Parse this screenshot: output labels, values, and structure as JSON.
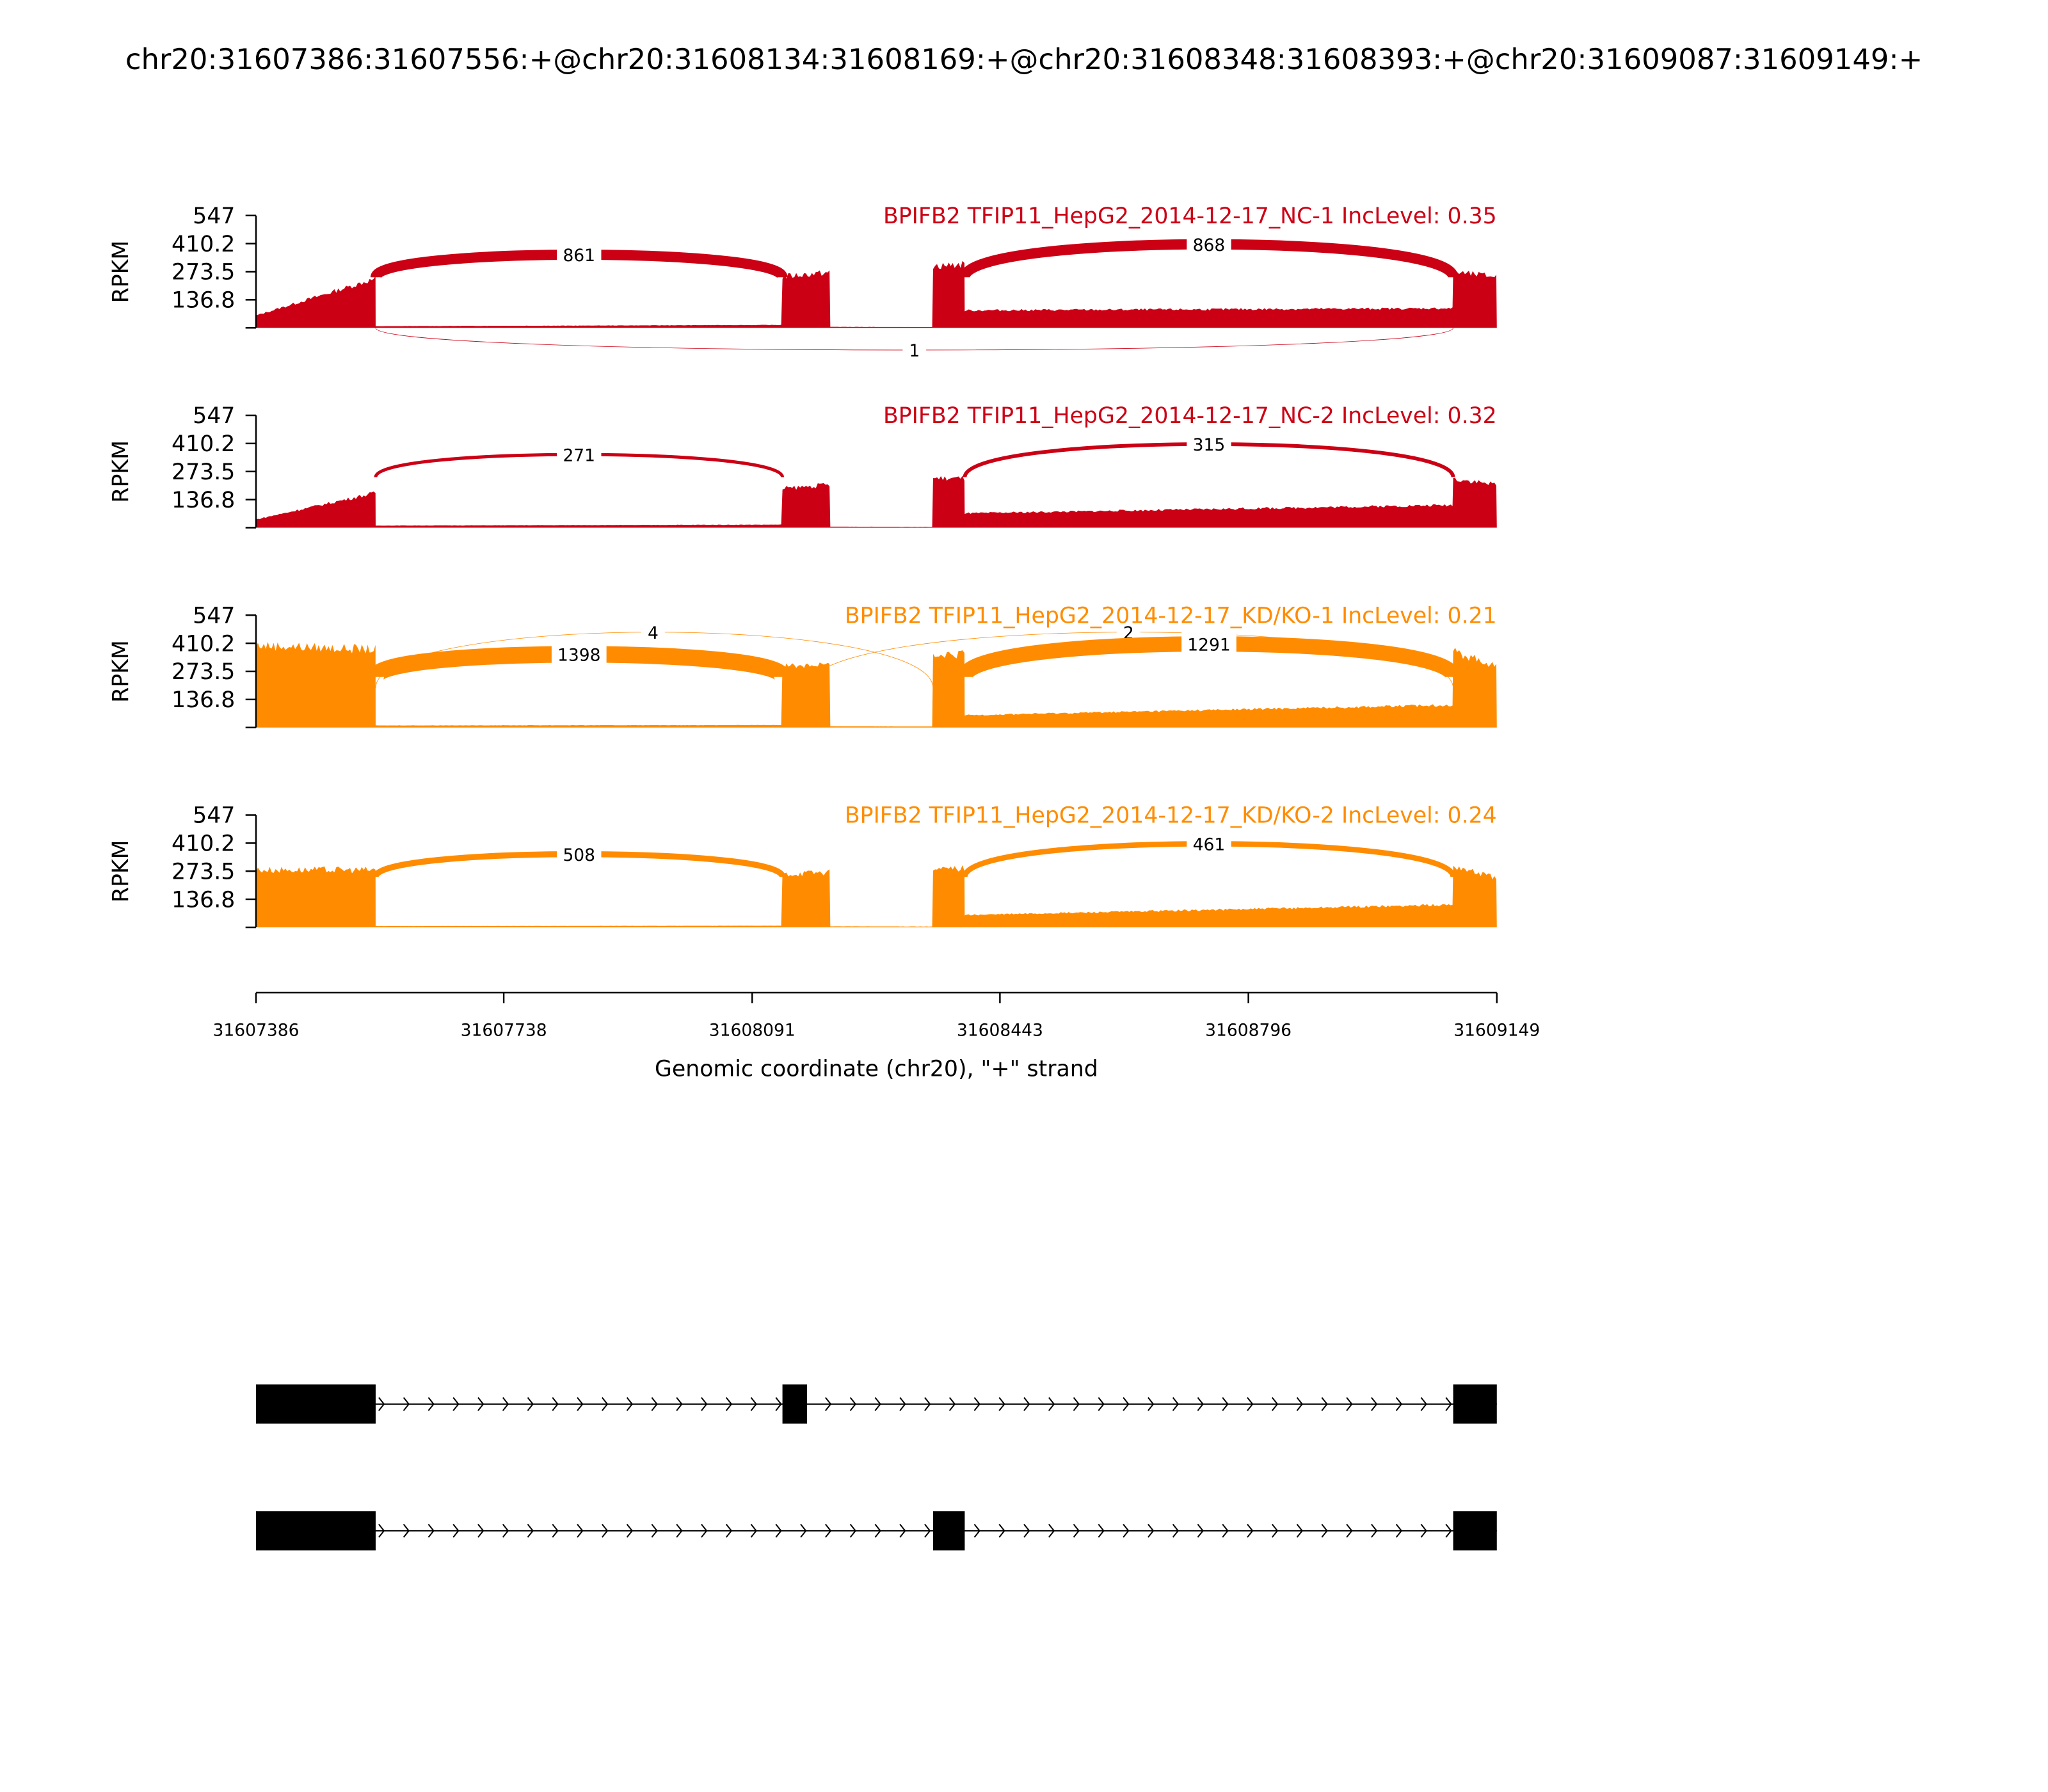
{
  "chart_data": {
    "type": "area",
    "title": "chr20:31607386:31607556:+@chr20:31608134:31608169:+@chr20:31608348:31608393:+@chr20:31609087:31609149:+",
    "xlabel": "Genomic coordinate (chr20), \"+\" strand",
    "ylabel": "RPKM",
    "xlim": [
      31607386,
      31609149
    ],
    "ylim": [
      0,
      547
    ],
    "xticks": [
      "31607386",
      "31607738",
      "31608091",
      "31608443",
      "31608796",
      "31609149"
    ],
    "yticks": [
      "547",
      "410.2",
      "273.5",
      "136.8"
    ],
    "colors": {
      "NC": "#cc0015",
      "KD": "#ff8c00"
    },
    "tracks": [
      {
        "label": "BPIFB2 TFIP11_HepG2_2014-12-17_NC-1 IncLevel: 0.35",
        "group": "NC",
        "coverage": [
          [
            31607386,
            31607556,
            60,
            240
          ],
          [
            31607556,
            31608134,
            8,
            14
          ],
          [
            31608134,
            31608202,
            250,
            270
          ],
          [
            31608202,
            31608348,
            5,
            4
          ],
          [
            31608348,
            31608393,
            300,
            310
          ],
          [
            31608393,
            31609087,
            85,
            95
          ],
          [
            31609087,
            31609149,
            270,
            250
          ]
        ],
        "junctions": [
          {
            "start": 31607556,
            "end": 31608134,
            "count": 861,
            "side": "above"
          },
          {
            "start": 31608393,
            "end": 31609087,
            "count": 868,
            "side": "above"
          },
          {
            "start": 31607556,
            "end": 31609087,
            "count": 1,
            "side": "below"
          }
        ]
      },
      {
        "label": "BPIFB2 TFIP11_HepG2_2014-12-17_NC-2 IncLevel: 0.32",
        "group": "NC",
        "coverage": [
          [
            31607386,
            31607556,
            40,
            170
          ],
          [
            31607556,
            31608134,
            10,
            15
          ],
          [
            31608134,
            31608202,
            190,
            210
          ],
          [
            31608202,
            31608348,
            5,
            4
          ],
          [
            31608348,
            31608393,
            240,
            240
          ],
          [
            31608393,
            31609087,
            70,
            110
          ],
          [
            31609087,
            31609149,
            240,
            210
          ]
        ],
        "junctions": [
          {
            "start": 31607556,
            "end": 31608134,
            "count": 271,
            "side": "above"
          },
          {
            "start": 31608393,
            "end": 31609087,
            "count": 315,
            "side": "above"
          }
        ]
      },
      {
        "label": "BPIFB2 TFIP11_HepG2_2014-12-17_KD/KO-1 IncLevel: 0.21",
        "group": "KD",
        "coverage": [
          [
            31607386,
            31607556,
            400,
            380
          ],
          [
            31607556,
            31608134,
            10,
            12
          ],
          [
            31608134,
            31608202,
            300,
            310
          ],
          [
            31608202,
            31608348,
            6,
            5
          ],
          [
            31608348,
            31608393,
            340,
            360
          ],
          [
            31608393,
            31609087,
            60,
            110
          ],
          [
            31609087,
            31609149,
            370,
            300
          ]
        ],
        "junctions": [
          {
            "start": 31607556,
            "end": 31608134,
            "count": 1398,
            "side": "above"
          },
          {
            "start": 31607556,
            "end": 31608348,
            "count": 4,
            "side": "above"
          },
          {
            "start": 31608169,
            "end": 31609087,
            "count": 2,
            "side": "above"
          },
          {
            "start": 31608393,
            "end": 31609087,
            "count": 1291,
            "side": "above"
          }
        ]
      },
      {
        "label": "BPIFB2 TFIP11_HepG2_2014-12-17_KD/KO-2 IncLevel: 0.24",
        "group": "KD",
        "coverage": [
          [
            31607386,
            31607556,
            280,
            280
          ],
          [
            31607556,
            31608134,
            6,
            8
          ],
          [
            31608134,
            31608202,
            260,
            270
          ],
          [
            31608202,
            31608348,
            5,
            4
          ],
          [
            31608348,
            31608393,
            280,
            290
          ],
          [
            31608393,
            31609087,
            60,
            110
          ],
          [
            31609087,
            31609149,
            300,
            240
          ]
        ],
        "junctions": [
          {
            "start": 31607556,
            "end": 31608134,
            "count": 508,
            "side": "above"
          },
          {
            "start": 31608393,
            "end": 31609087,
            "count": 461,
            "side": "above"
          }
        ]
      }
    ],
    "transcripts": [
      {
        "exons": [
          [
            31607386,
            31607556
          ],
          [
            31608134,
            31608169
          ],
          [
            31609087,
            31609149
          ]
        ],
        "strand": "+"
      },
      {
        "exons": [
          [
            31607386,
            31607556
          ],
          [
            31608348,
            31608393
          ],
          [
            31609087,
            31609149
          ]
        ],
        "strand": "+"
      }
    ]
  }
}
